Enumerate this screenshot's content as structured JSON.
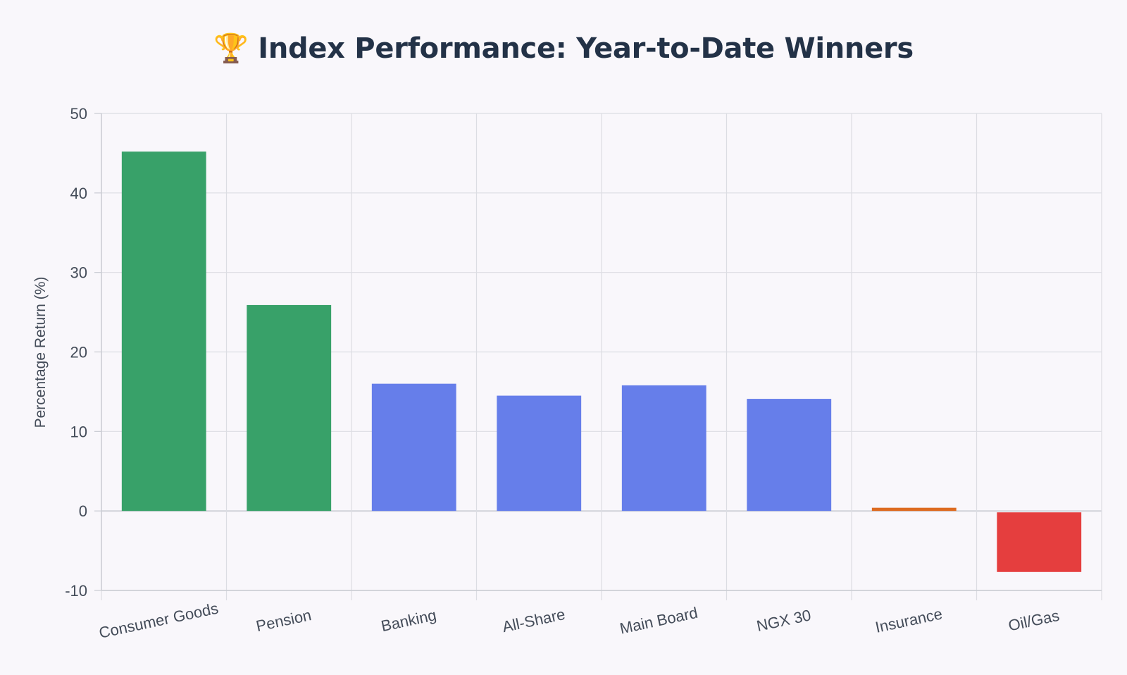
{
  "chart_data": {
    "type": "bar",
    "title": "🏆 Index Performance: Year-to-Date Winners",
    "ylabel": "Percentage Return (%)",
    "xlabel": "",
    "categories": [
      "Consumer Goods",
      "Pension",
      "Banking",
      "All-Share",
      "Main Board",
      "NGX 30",
      "Insurance",
      "Oil/Gas"
    ],
    "values": [
      45.2,
      25.9,
      16.0,
      14.5,
      15.8,
      14.1,
      0.4,
      -7.5
    ],
    "colors": [
      "#38a169",
      "#38a169",
      "#667eea",
      "#667eea",
      "#667eea",
      "#667eea",
      "#dd6b20",
      "#e53e3e"
    ],
    "ylim": [
      -10,
      50
    ],
    "yticks": [
      -10,
      0,
      10,
      20,
      30,
      40,
      50
    ],
    "grid": true,
    "legend": "none"
  }
}
